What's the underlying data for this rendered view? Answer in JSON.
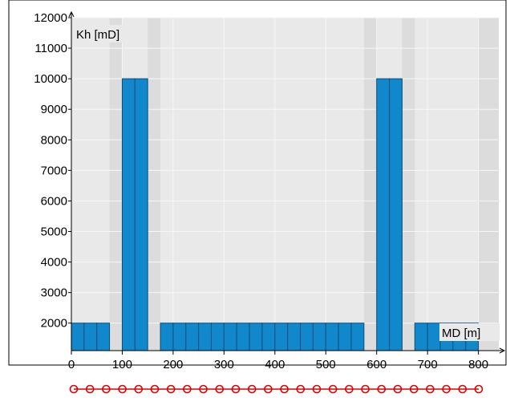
{
  "chart_data": {
    "type": "bar",
    "xlabel": "MD [m]",
    "ylabel": "Kh [mD]",
    "xlim": [
      0,
      840
    ],
    "ylim": [
      1100,
      12000
    ],
    "x_ticks": [
      0,
      100,
      200,
      300,
      400,
      500,
      600,
      700,
      800
    ],
    "y_ticks": [
      2000,
      3000,
      4000,
      5000,
      6000,
      7000,
      8000,
      9000,
      10000,
      11000,
      12000
    ],
    "grid": true,
    "bar_fill_from": 1100,
    "bars": [
      {
        "x0": 0,
        "x1": 25,
        "value": 2000
      },
      {
        "x0": 25,
        "x1": 50,
        "value": 2000
      },
      {
        "x0": 50,
        "x1": 75,
        "value": 2000
      },
      {
        "x0": 100,
        "x1": 125,
        "value": 10000
      },
      {
        "x0": 125,
        "x1": 150,
        "value": 10000
      },
      {
        "x0": 175,
        "x1": 200,
        "value": 2000
      },
      {
        "x0": 200,
        "x1": 225,
        "value": 2000
      },
      {
        "x0": 225,
        "x1": 250,
        "value": 2000
      },
      {
        "x0": 250,
        "x1": 275,
        "value": 2000
      },
      {
        "x0": 275,
        "x1": 300,
        "value": 2000
      },
      {
        "x0": 300,
        "x1": 325,
        "value": 2000
      },
      {
        "x0": 325,
        "x1": 350,
        "value": 2000
      },
      {
        "x0": 350,
        "x1": 375,
        "value": 2000
      },
      {
        "x0": 375,
        "x1": 400,
        "value": 2000
      },
      {
        "x0": 400,
        "x1": 425,
        "value": 2000
      },
      {
        "x0": 425,
        "x1": 450,
        "value": 2000
      },
      {
        "x0": 450,
        "x1": 475,
        "value": 2000
      },
      {
        "x0": 475,
        "x1": 500,
        "value": 2000
      },
      {
        "x0": 500,
        "x1": 525,
        "value": 2000
      },
      {
        "x0": 525,
        "x1": 550,
        "value": 2000
      },
      {
        "x0": 550,
        "x1": 575,
        "value": 2000
      },
      {
        "x0": 600,
        "x1": 625,
        "value": 10000
      },
      {
        "x0": 625,
        "x1": 650,
        "value": 10000
      },
      {
        "x0": 675,
        "x1": 700,
        "value": 2000
      },
      {
        "x0": 700,
        "x1": 725,
        "value": 2000
      },
      {
        "x0": 725,
        "x1": 750,
        "value": 2000
      },
      {
        "x0": 750,
        "x1": 775,
        "value": 2000
      },
      {
        "x0": 775,
        "x1": 800,
        "value": 2000
      }
    ],
    "shaded_bands": [
      {
        "x0": 75,
        "x1": 100
      },
      {
        "x0": 150,
        "x1": 175
      },
      {
        "x0": 575,
        "x1": 600
      },
      {
        "x0": 650,
        "x1": 675
      },
      {
        "x0": 800,
        "x1": 840
      }
    ],
    "marker_string_count": 26
  },
  "colors": {
    "background": "#ffffff",
    "plot_background": "#e9e9e9",
    "shaded_band": "#dcdcdc",
    "grid": "#f7f7f7",
    "bar_fill": "#1188cc",
    "bar_edge": "#0a4f7a",
    "axis": "#000000",
    "marker": "#dd0000"
  }
}
